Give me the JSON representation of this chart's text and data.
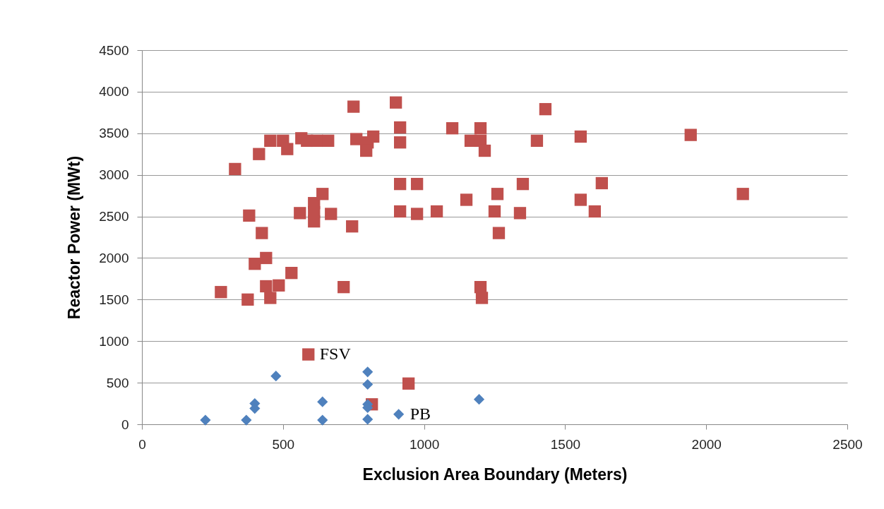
{
  "chart_data": {
    "type": "scatter",
    "xlabel": "Exclusion Area Boundary (Meters)",
    "ylabel": "Reactor Power (MWt)",
    "xlim": [
      0,
      2500
    ],
    "xticks": [
      0,
      500,
      1000,
      1500,
      2000,
      2500
    ],
    "ylim": [
      0,
      4500
    ],
    "yticks": [
      0,
      500,
      1000,
      1500,
      2000,
      2500,
      3000,
      3500,
      4000,
      4500
    ],
    "grid": "y",
    "series": [
      {
        "color": "#c0504d",
        "marker": "square",
        "x": [
          280,
          330,
          380,
          375,
          415,
          425,
          400,
          440,
          440,
          455,
          485,
          530,
          455,
          500,
          515,
          565,
          585,
          620,
          660,
          715,
          745,
          750,
          760,
          820,
          800,
          795,
          900,
          915,
          915,
          915,
          915,
          560,
          610,
          610,
          610,
          640,
          670,
          1100,
          1200,
          1165,
          1200,
          1215,
          1430,
          1400,
          1555,
          975,
          975,
          1045,
          1150,
          1260,
          1250,
          1265,
          1350,
          1340,
          1555,
          1630,
          1605,
          1200,
          1205,
          1945,
          2130,
          590,
          945,
          815
        ],
        "values": [
          1590,
          3070,
          2510,
          1500,
          3250,
          2300,
          1930,
          2000,
          1660,
          1520,
          1670,
          1820,
          3410,
          3410,
          3310,
          3440,
          3410,
          3410,
          3410,
          1650,
          2380,
          3820,
          3430,
          3460,
          3390,
          3290,
          3870,
          3570,
          3390,
          2890,
          2560,
          2540,
          2660,
          2550,
          2440,
          2770,
          2530,
          3560,
          3560,
          3410,
          3410,
          3290,
          3790,
          3410,
          3460,
          2890,
          2530,
          2560,
          2700,
          2770,
          2560,
          2300,
          2890,
          2540,
          2700,
          2900,
          2560,
          1650,
          1520,
          3480,
          2770,
          840,
          490,
          240
        ]
      },
      {
        "color": "#4f81bd",
        "marker": "diamond",
        "x": [
          225,
          370,
          400,
          400,
          475,
          640,
          640,
          800,
          800,
          800,
          800,
          800,
          910,
          1195
        ],
        "values": [
          50,
          50,
          250,
          190,
          580,
          270,
          50,
          630,
          480,
          240,
          200,
          60,
          120,
          300
        ]
      }
    ],
    "annotations": [
      {
        "text": "FSV",
        "x": 590,
        "y": 840
      },
      {
        "text": "PB",
        "x": 910,
        "y": 120
      }
    ]
  }
}
